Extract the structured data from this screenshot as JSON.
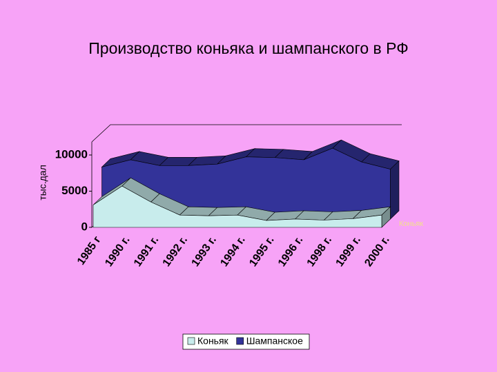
{
  "chart_data": {
    "type": "area3d",
    "title": "Производство коньяка и шампанского в РФ",
    "y_label": "тыс.дал",
    "categories": [
      "1985 г",
      "1990 г.",
      "1991 г.",
      "1992 г.",
      "1993 г.",
      "1994 г.",
      "1995 г.",
      "1996 г.",
      "1998 г.",
      "1999 г.",
      "2000 г."
    ],
    "series": [
      {
        "name": "Коньяк",
        "color": "#c8ecec",
        "values": [
          3100,
          5700,
          3500,
          1700,
          1600,
          1700,
          950,
          1150,
          1000,
          1200,
          1700
        ]
      },
      {
        "name": "Шампанское",
        "color": "#333399",
        "values": [
          7200,
          8200,
          7400,
          7400,
          7600,
          8600,
          8500,
          8200,
          9800,
          7900,
          6900
        ]
      }
    ],
    "ylim": [
      0,
      12000
    ],
    "yticks": [
      0,
      5000,
      10000
    ],
    "legend": "bottom"
  }
}
